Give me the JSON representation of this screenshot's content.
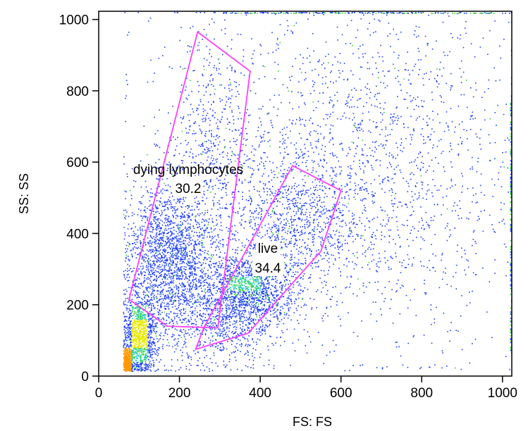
{
  "chart_data": {
    "type": "scatter",
    "subtype": "flow-cytometry-dot-plot",
    "title": "",
    "xlabel": "FS: FS",
    "ylabel": "SS: SS",
    "xlim": [
      0,
      1023
    ],
    "ylim": [
      0,
      1023
    ],
    "x_ticks": [
      0,
      200,
      400,
      600,
      800,
      1000
    ],
    "y_ticks": [
      0,
      200,
      400,
      600,
      800,
      1000
    ],
    "grid": false,
    "density_colors": [
      "#1f3fff",
      "#21c7d9",
      "#33d633",
      "#e8e800",
      "#ff9900",
      "#ff2200"
    ],
    "gate_color": "#ff40ff",
    "populations": [
      {
        "cx": 180,
        "cy": 330,
        "sx": 55,
        "sy": 110,
        "weight": 0.23
      },
      {
        "cx": 100,
        "cy": 110,
        "sx": 22,
        "sy": 60,
        "weight": 0.12
      },
      {
        "cx": 70,
        "cy": 40,
        "sx": 6,
        "sy": 20,
        "weight": 0.05
      },
      {
        "cx": 360,
        "cy": 240,
        "sx": 60,
        "sy": 55,
        "weight": 0.16
      },
      {
        "cx": 470,
        "cy": 420,
        "sx": 90,
        "sy": 110,
        "weight": 0.12
      },
      {
        "cx": 270,
        "cy": 650,
        "sx": 50,
        "sy": 160,
        "weight": 0.05
      },
      {
        "cx": 700,
        "cy": 560,
        "sx": 190,
        "sy": 240,
        "weight": 0.17
      },
      {
        "cx": 520,
        "cy": 760,
        "sx": 220,
        "sy": 200,
        "weight": 0.05
      },
      {
        "cx": 300,
        "cy": 120,
        "sx": 70,
        "sy": 50,
        "weight": 0.05
      }
    ],
    "gates": [
      {
        "name": "dying lymphocytes",
        "value": "30.2",
        "vertices": [
          [
            245,
            965
          ],
          [
            375,
            855
          ],
          [
            295,
            135
          ],
          [
            170,
            140
          ],
          [
            75,
            215
          ]
        ]
      },
      {
        "name": "live",
        "value": "34.4",
        "vertices": [
          [
            240,
            75
          ],
          [
            370,
            120
          ],
          [
            550,
            350
          ],
          [
            600,
            520
          ],
          [
            480,
            590
          ],
          [
            260,
            135
          ]
        ]
      }
    ]
  }
}
